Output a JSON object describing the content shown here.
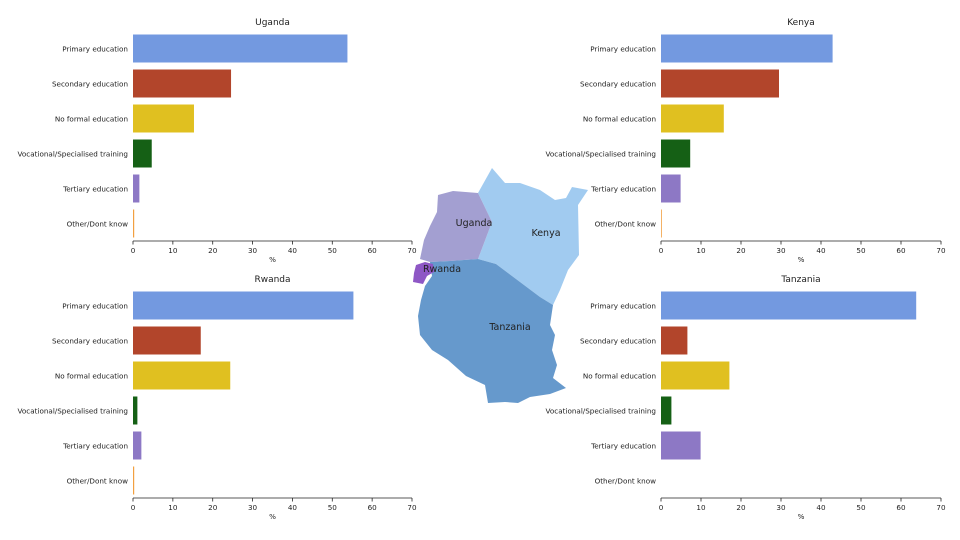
{
  "chart_data": [
    {
      "type": "bar",
      "orientation": "horizontal",
      "title": "Uganda",
      "xlabel": "%",
      "xlim": [
        0,
        70
      ],
      "xticks": [
        0,
        10,
        20,
        30,
        40,
        50,
        60,
        70
      ],
      "categories": [
        "Primary education",
        "Secondary education",
        "No formal education",
        "Vocational/Specialised training",
        "Tertiary education",
        "Other/Dont know"
      ],
      "values": [
        53.8,
        24.6,
        15.3,
        4.7,
        1.6,
        0.3
      ]
    },
    {
      "type": "bar",
      "orientation": "horizontal",
      "title": "Kenya",
      "xlabel": "%",
      "xlim": [
        0,
        70
      ],
      "xticks": [
        0,
        10,
        20,
        30,
        40,
        50,
        60,
        70
      ],
      "categories": [
        "Primary education",
        "Secondary education",
        "No formal education",
        "Vocational/Specialised training",
        "Tertiary education",
        "Other/Dont know"
      ],
      "values": [
        42.9,
        29.5,
        15.7,
        7.3,
        4.9,
        0.2
      ]
    },
    {
      "type": "bar",
      "orientation": "horizontal",
      "title": "Rwanda",
      "xlabel": "%",
      "xlim": [
        0,
        70
      ],
      "xticks": [
        0,
        10,
        20,
        30,
        40,
        50,
        60,
        70
      ],
      "categories": [
        "Primary education",
        "Secondary education",
        "No formal education",
        "Vocational/Specialised training",
        "Tertiary education",
        "Other/Dont know"
      ],
      "values": [
        55.3,
        17.0,
        24.4,
        1.1,
        2.1,
        0.3
      ]
    },
    {
      "type": "bar",
      "orientation": "horizontal",
      "title": "Tanzania",
      "xlabel": "%",
      "xlim": [
        0,
        70
      ],
      "xticks": [
        0,
        10,
        20,
        30,
        40,
        50,
        60,
        70
      ],
      "categories": [
        "Primary education",
        "Secondary education",
        "No formal education",
        "Vocational/Specialised training",
        "Tertiary education",
        "Other/Dont know"
      ],
      "values": [
        63.8,
        6.6,
        17.1,
        2.6,
        9.9,
        0.0
      ]
    }
  ],
  "colors": {
    "Primary education": "#7399e0",
    "Secondary education": "#b2452b",
    "No formal education": "#e0c020",
    "Vocational/Specialised training": "#156015",
    "Tertiary education": "#8d78c5",
    "Other/Dont know": "#f2a040"
  },
  "map": {
    "regions": [
      {
        "name": "Uganda",
        "color": "#a39fd1"
      },
      {
        "name": "Kenya",
        "color": "#a1cbf0"
      },
      {
        "name": "Rwanda",
        "color": "#8e57c5"
      },
      {
        "name": "Tanzania",
        "color": "#6699cc"
      }
    ]
  }
}
